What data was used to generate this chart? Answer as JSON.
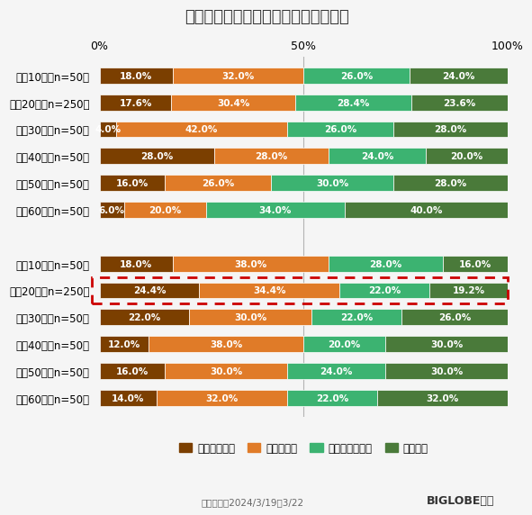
{
  "title": "最近、メンタルヘルスの不調を感じる",
  "categories": [
    "男性10代（n=50）",
    "男性20代（n=250）",
    "男性30代（n=50）",
    "男性40代（n=50）",
    "男性50代（n=50）",
    "男性60代（n=50）",
    "",
    "女性10代（n=50）",
    "女性20代（n=250）",
    "女性30代（n=50）",
    "女性40代（n=50）",
    "女性50代（n=50）",
    "女性60代（n=50）"
  ],
  "highlighted_row": 8,
  "data": [
    [
      18.0,
      32.0,
      26.0,
      24.0
    ],
    [
      17.6,
      30.4,
      28.4,
      23.6
    ],
    [
      4.0,
      42.0,
      26.0,
      28.0
    ],
    [
      28.0,
      28.0,
      24.0,
      20.0
    ],
    [
      16.0,
      26.0,
      30.0,
      28.0
    ],
    [
      6.0,
      20.0,
      34.0,
      40.0
    ],
    [
      0,
      0,
      0,
      0
    ],
    [
      18.0,
      38.0,
      28.0,
      16.0
    ],
    [
      24.4,
      34.4,
      22.0,
      19.2
    ],
    [
      22.0,
      30.0,
      22.0,
      26.0
    ],
    [
      12.0,
      38.0,
      20.0,
      30.0
    ],
    [
      16.0,
      30.0,
      24.0,
      30.0
    ],
    [
      14.0,
      32.0,
      22.0,
      32.0
    ]
  ],
  "colors": [
    "#7B3F00",
    "#E07B28",
    "#3CB371",
    "#4A7A3A"
  ],
  "legend_labels": [
    "とても感じる",
    "やや感じる",
    "あまり感じない",
    "感じない"
  ],
  "footer": "調査期間：2024/3/19～3/22",
  "footer_brand": "BIGLOBE調べ",
  "background_color": "#f5f5f5",
  "bar_height": 0.6,
  "text_color_white": "#ffffff",
  "highlight_color": "#cc0000"
}
